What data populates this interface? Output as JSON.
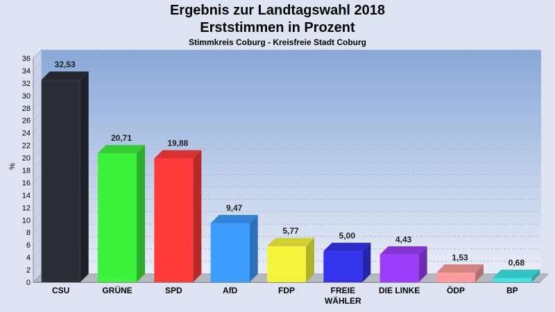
{
  "chart_data": {
    "type": "bar",
    "title": "Ergebnis zur Landtagswahl 2018",
    "subtitle": "Erststimmen in Prozent",
    "caption": "Stimmkreis Coburg - Kreisfreie Stadt Coburg",
    "ylabel": "%",
    "ylim": [
      0,
      36
    ],
    "ytick_step": 2,
    "grid": true,
    "categories": [
      "CSU",
      "GRÜNE",
      "SPD",
      "AfD",
      "FDP",
      "FREIE WÄHLER",
      "DIE LINKE",
      "ÖDP",
      "BP"
    ],
    "category_lines": [
      [
        "CSU"
      ],
      [
        "GRÜNE"
      ],
      [
        "SPD"
      ],
      [
        "AfD"
      ],
      [
        "FDP"
      ],
      [
        "FREIE",
        "WÄHLER"
      ],
      [
        "DIE LINKE"
      ],
      [
        "ÖDP"
      ],
      [
        "BP"
      ]
    ],
    "values": [
      32.53,
      20.71,
      19.88,
      9.47,
      5.77,
      5.0,
      4.43,
      1.53,
      0.68
    ],
    "value_labels": [
      "32,53",
      "20,71",
      "19,88",
      "9,47",
      "5,77",
      "5,00",
      "4,43",
      "1,53",
      "0,68"
    ],
    "colors": [
      "#2a2e36",
      "#3df23d",
      "#ff3a3a",
      "#3c9cff",
      "#f4f43a",
      "#3434ee",
      "#9b3cfa",
      "#fb9b9b",
      "#3ee4e4"
    ]
  }
}
